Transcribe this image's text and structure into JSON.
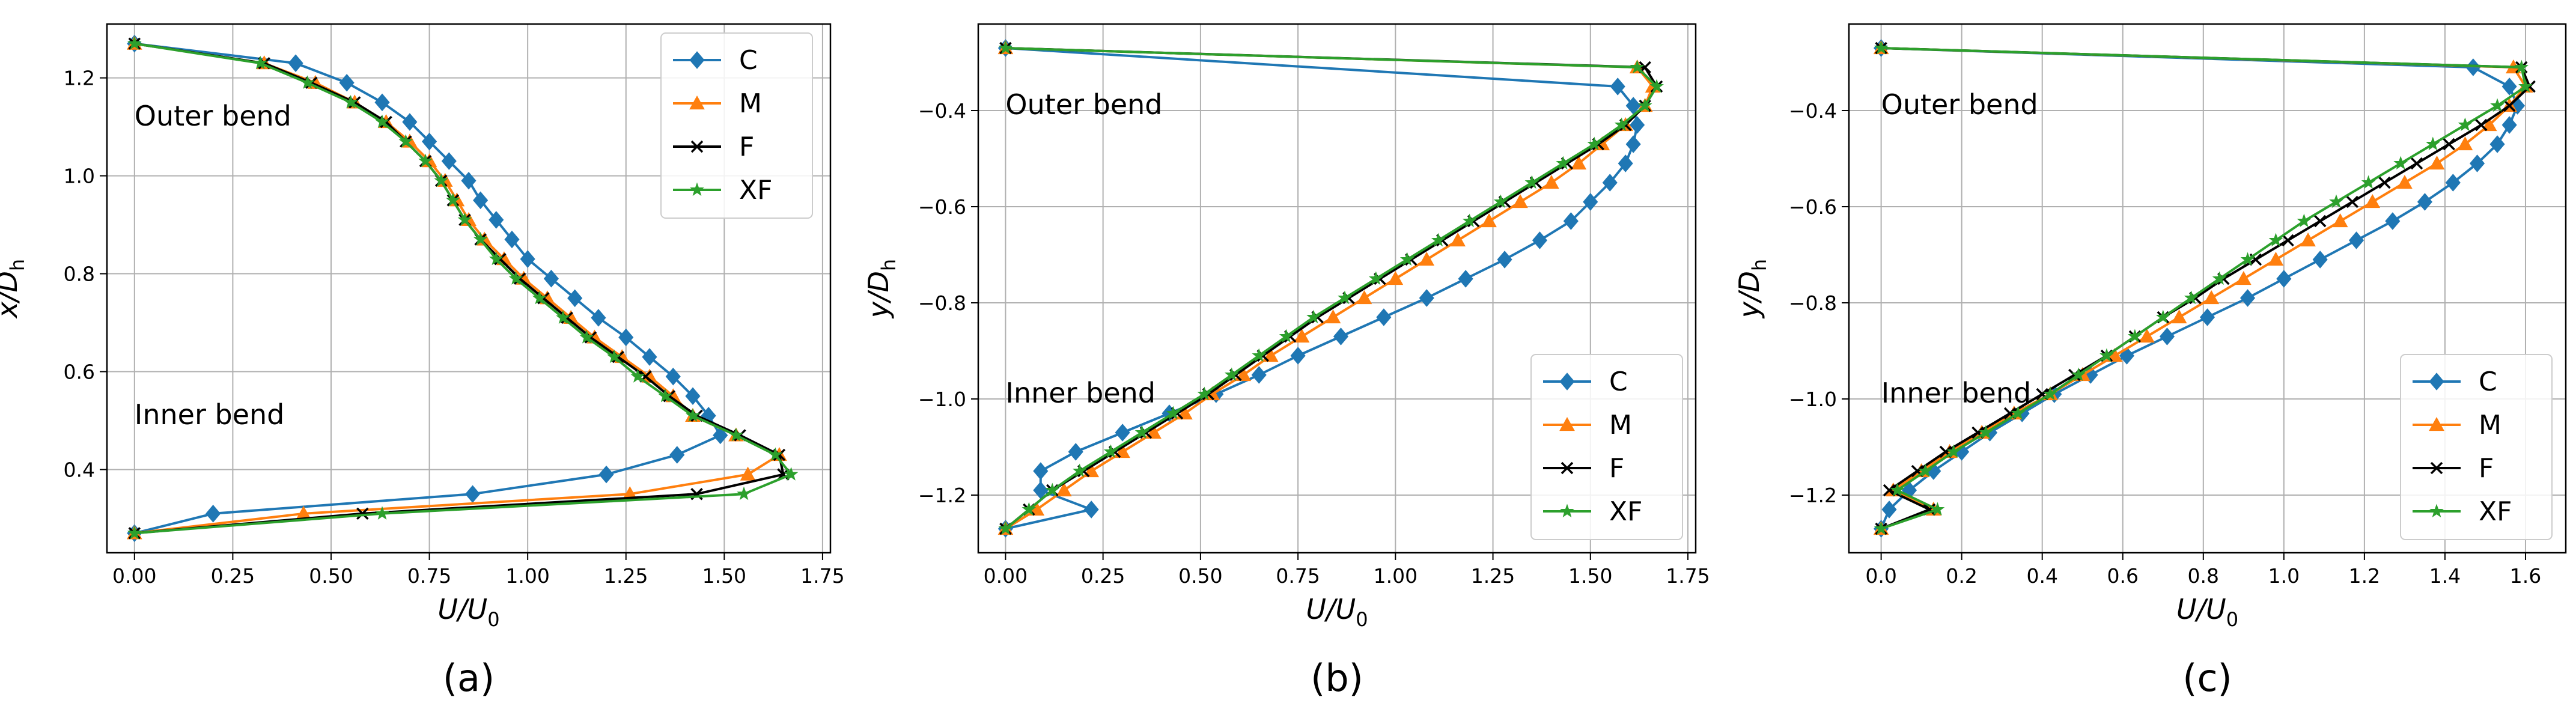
{
  "chart_data": [
    {
      "type": "line",
      "panel_label": "(a)",
      "xlabel": "U/U",
      "xlabel_sub": "0",
      "ylabel": "x/D",
      "ylabel_sub": "h",
      "xlim": [
        -0.07,
        1.77
      ],
      "ylim": [
        0.23,
        1.31
      ],
      "xticks": [
        0,
        0.25,
        0.5,
        0.75,
        1.0,
        1.25,
        1.5,
        1.75
      ],
      "xtick_labels": [
        "0.00",
        "0.25",
        "0.50",
        "0.75",
        "1.00",
        "1.25",
        "1.50",
        "1.75"
      ],
      "yticks": [
        0.4,
        0.6,
        0.8,
        1.0,
        1.2
      ],
      "ytick_labels": [
        "0.4",
        "0.6",
        "0.8",
        "1.0",
        "1.2"
      ],
      "grid": true,
      "legend_position": "top-right",
      "annotations": [
        {
          "text": "Outer bend",
          "x": 0.0,
          "y": 1.12
        },
        {
          "text": "Inner bend",
          "x": 0.0,
          "y": 0.51
        }
      ],
      "series": [
        {
          "name": "C",
          "x": [
            0.0,
            0.41,
            0.54,
            0.63,
            0.7,
            0.75,
            0.8,
            0.85,
            0.88,
            0.92,
            0.96,
            1.0,
            1.06,
            1.12,
            1.18,
            1.25,
            1.31,
            1.37,
            1.42,
            1.46,
            1.49,
            1.38,
            1.2,
            0.86,
            0.2,
            0.0
          ],
          "y": [
            1.27,
            1.23,
            1.19,
            1.15,
            1.11,
            1.07,
            1.03,
            0.99,
            0.95,
            0.91,
            0.87,
            0.83,
            0.79,
            0.75,
            0.71,
            0.67,
            0.63,
            0.59,
            0.55,
            0.51,
            0.47,
            0.43,
            0.39,
            0.35,
            0.31,
            0.27
          ]
        },
        {
          "name": "M",
          "x": [
            0.0,
            0.33,
            0.46,
            0.56,
            0.64,
            0.7,
            0.75,
            0.79,
            0.82,
            0.85,
            0.89,
            0.94,
            0.99,
            1.05,
            1.11,
            1.17,
            1.24,
            1.31,
            1.37,
            1.42,
            1.53,
            1.64,
            1.56,
            1.26,
            0.43,
            0.0
          ],
          "y": [
            1.27,
            1.23,
            1.19,
            1.15,
            1.11,
            1.07,
            1.03,
            0.99,
            0.95,
            0.91,
            0.87,
            0.83,
            0.79,
            0.75,
            0.71,
            0.67,
            0.63,
            0.59,
            0.55,
            0.51,
            0.47,
            0.43,
            0.39,
            0.35,
            0.31,
            0.27
          ]
        },
        {
          "name": "F",
          "x": [
            0.0,
            0.33,
            0.45,
            0.56,
            0.64,
            0.69,
            0.74,
            0.78,
            0.81,
            0.84,
            0.88,
            0.93,
            0.98,
            1.04,
            1.1,
            1.16,
            1.23,
            1.3,
            1.36,
            1.43,
            1.54,
            1.64,
            1.65,
            1.43,
            0.58,
            0.0
          ],
          "y": [
            1.27,
            1.23,
            1.19,
            1.15,
            1.11,
            1.07,
            1.03,
            0.99,
            0.95,
            0.91,
            0.87,
            0.83,
            0.79,
            0.75,
            0.71,
            0.67,
            0.63,
            0.59,
            0.55,
            0.51,
            0.47,
            0.43,
            0.39,
            0.35,
            0.31,
            0.27
          ]
        },
        {
          "name": "XF",
          "x": [
            0.0,
            0.32,
            0.44,
            0.55,
            0.63,
            0.69,
            0.74,
            0.78,
            0.81,
            0.84,
            0.88,
            0.92,
            0.97,
            1.03,
            1.09,
            1.15,
            1.22,
            1.28,
            1.35,
            1.42,
            1.53,
            1.63,
            1.67,
            1.55,
            0.63,
            0.0
          ],
          "y": [
            1.27,
            1.23,
            1.19,
            1.15,
            1.11,
            1.07,
            1.03,
            0.99,
            0.95,
            0.91,
            0.87,
            0.83,
            0.79,
            0.75,
            0.71,
            0.67,
            0.63,
            0.59,
            0.55,
            0.51,
            0.47,
            0.43,
            0.39,
            0.35,
            0.31,
            0.27
          ]
        }
      ]
    },
    {
      "type": "line",
      "panel_label": "(b)",
      "xlabel": "U/U",
      "xlabel_sub": "0",
      "ylabel": "y/D",
      "ylabel_sub": "h",
      "xlim": [
        -0.07,
        1.77
      ],
      "ylim": [
        -1.32,
        -0.22
      ],
      "xticks": [
        0,
        0.25,
        0.5,
        0.75,
        1.0,
        1.25,
        1.5,
        1.75
      ],
      "xtick_labels": [
        "0.00",
        "0.25",
        "0.50",
        "0.75",
        "1.00",
        "1.25",
        "1.50",
        "1.75"
      ],
      "yticks": [
        -1.2,
        -1.0,
        -0.8,
        -0.6,
        -0.4
      ],
      "ytick_labels": [
        "−1.2",
        "−1.0",
        "−0.8",
        "−0.6",
        "−0.4"
      ],
      "grid": true,
      "legend_position": "bottom-right",
      "annotations": [
        {
          "text": "Outer bend",
          "x": 0.0,
          "y": -0.39
        },
        {
          "text": "Inner bend",
          "x": 0.0,
          "y": -0.99
        }
      ],
      "series": [
        {
          "name": "C",
          "x": [
            0.0,
            0.22,
            0.09,
            0.09,
            0.18,
            0.3,
            0.42,
            0.54,
            0.65,
            0.75,
            0.86,
            0.97,
            1.08,
            1.18,
            1.28,
            1.37,
            1.45,
            1.5,
            1.55,
            1.59,
            1.61,
            1.62,
            1.61,
            1.57,
            0.0
          ],
          "y": [
            -1.27,
            -1.23,
            -1.19,
            -1.15,
            -1.11,
            -1.07,
            -1.03,
            -0.99,
            -0.95,
            -0.91,
            -0.87,
            -0.83,
            -0.79,
            -0.75,
            -0.71,
            -0.67,
            -0.63,
            -0.59,
            -0.55,
            -0.51,
            -0.47,
            -0.43,
            -0.39,
            -0.35,
            -0.27
          ]
        },
        {
          "name": "M",
          "x": [
            0.0,
            0.08,
            0.15,
            0.22,
            0.3,
            0.38,
            0.46,
            0.53,
            0.61,
            0.68,
            0.76,
            0.84,
            0.92,
            1.0,
            1.08,
            1.16,
            1.24,
            1.32,
            1.4,
            1.47,
            1.53,
            1.59,
            1.64,
            1.66,
            1.62,
            0.0
          ],
          "y": [
            -1.27,
            -1.23,
            -1.19,
            -1.15,
            -1.11,
            -1.07,
            -1.03,
            -0.99,
            -0.95,
            -0.91,
            -0.87,
            -0.83,
            -0.79,
            -0.75,
            -0.71,
            -0.67,
            -0.63,
            -0.59,
            -0.55,
            -0.51,
            -0.47,
            -0.43,
            -0.39,
            -0.35,
            -0.31,
            -0.27
          ]
        },
        {
          "name": "F",
          "x": [
            0.0,
            0.06,
            0.12,
            0.2,
            0.28,
            0.36,
            0.44,
            0.52,
            0.59,
            0.66,
            0.73,
            0.8,
            0.88,
            0.96,
            1.04,
            1.12,
            1.2,
            1.28,
            1.36,
            1.44,
            1.52,
            1.59,
            1.64,
            1.67,
            1.64,
            0.0
          ],
          "y": [
            -1.27,
            -1.23,
            -1.19,
            -1.15,
            -1.11,
            -1.07,
            -1.03,
            -0.99,
            -0.95,
            -0.91,
            -0.87,
            -0.83,
            -0.79,
            -0.75,
            -0.71,
            -0.67,
            -0.63,
            -0.59,
            -0.55,
            -0.51,
            -0.47,
            -0.43,
            -0.39,
            -0.35,
            -0.31,
            -0.27
          ]
        },
        {
          "name": "XF",
          "x": [
            0.0,
            0.06,
            0.12,
            0.19,
            0.27,
            0.35,
            0.43,
            0.51,
            0.58,
            0.65,
            0.72,
            0.79,
            0.87,
            0.95,
            1.03,
            1.11,
            1.19,
            1.27,
            1.35,
            1.43,
            1.51,
            1.58,
            1.64,
            1.67,
            1.62,
            0.0
          ],
          "y": [
            -1.27,
            -1.23,
            -1.19,
            -1.15,
            -1.11,
            -1.07,
            -1.03,
            -0.99,
            -0.95,
            -0.91,
            -0.87,
            -0.83,
            -0.79,
            -0.75,
            -0.71,
            -0.67,
            -0.63,
            -0.59,
            -0.55,
            -0.51,
            -0.47,
            -0.43,
            -0.39,
            -0.35,
            -0.31,
            -0.27
          ]
        }
      ]
    },
    {
      "type": "line",
      "panel_label": "(c)",
      "xlabel": "U/U",
      "xlabel_sub": "0",
      "ylabel": "y/D",
      "ylabel_sub": "h",
      "xlim": [
        -0.08,
        1.7
      ],
      "ylim": [
        -1.32,
        -0.22
      ],
      "xticks": [
        0,
        0.2,
        0.4,
        0.6,
        0.8,
        1.0,
        1.2,
        1.4,
        1.6
      ],
      "xtick_labels": [
        "0.0",
        "0.2",
        "0.4",
        "0.6",
        "0.8",
        "1.0",
        "1.2",
        "1.4",
        "1.6"
      ],
      "yticks": [
        -1.2,
        -1.0,
        -0.8,
        -0.6,
        -0.4
      ],
      "ytick_labels": [
        "−1.2",
        "−1.0",
        "−0.8",
        "−0.6",
        "−0.4"
      ],
      "grid": true,
      "legend_position": "bottom-right",
      "annotations": [
        {
          "text": "Outer bend",
          "x": 0.0,
          "y": -0.39
        },
        {
          "text": "Inner bend",
          "x": 0.0,
          "y": -0.99
        }
      ],
      "series": [
        {
          "name": "C",
          "x": [
            0.0,
            0.02,
            0.07,
            0.13,
            0.2,
            0.27,
            0.35,
            0.43,
            0.52,
            0.61,
            0.71,
            0.81,
            0.91,
            1.0,
            1.09,
            1.18,
            1.27,
            1.35,
            1.42,
            1.48,
            1.53,
            1.56,
            1.58,
            1.56,
            1.47,
            0.0
          ],
          "y": [
            -1.27,
            -1.23,
            -1.19,
            -1.15,
            -1.11,
            -1.07,
            -1.03,
            -0.99,
            -0.95,
            -0.91,
            -0.87,
            -0.83,
            -0.79,
            -0.75,
            -0.71,
            -0.67,
            -0.63,
            -0.59,
            -0.55,
            -0.51,
            -0.47,
            -0.43,
            -0.39,
            -0.35,
            -0.31,
            -0.27
          ]
        },
        {
          "name": "M",
          "x": [
            0.0,
            0.13,
            0.03,
            0.1,
            0.17,
            0.25,
            0.33,
            0.42,
            0.5,
            0.58,
            0.66,
            0.74,
            0.82,
            0.9,
            0.98,
            1.06,
            1.14,
            1.22,
            1.3,
            1.38,
            1.45,
            1.51,
            1.56,
            1.6,
            1.57,
            0.0
          ],
          "y": [
            -1.27,
            -1.23,
            -1.19,
            -1.15,
            -1.11,
            -1.07,
            -1.03,
            -0.99,
            -0.95,
            -0.91,
            -0.87,
            -0.83,
            -0.79,
            -0.75,
            -0.71,
            -0.67,
            -0.63,
            -0.59,
            -0.55,
            -0.51,
            -0.47,
            -0.43,
            -0.39,
            -0.35,
            -0.31,
            -0.27
          ]
        },
        {
          "name": "F",
          "x": [
            0.0,
            0.12,
            0.02,
            0.09,
            0.16,
            0.24,
            0.32,
            0.4,
            0.48,
            0.56,
            0.63,
            0.7,
            0.78,
            0.85,
            0.93,
            1.01,
            1.09,
            1.17,
            1.25,
            1.33,
            1.41,
            1.49,
            1.56,
            1.61,
            1.59,
            0.0
          ],
          "y": [
            -1.27,
            -1.23,
            -1.19,
            -1.15,
            -1.11,
            -1.07,
            -1.03,
            -0.99,
            -0.95,
            -0.91,
            -0.87,
            -0.83,
            -0.79,
            -0.75,
            -0.71,
            -0.67,
            -0.63,
            -0.59,
            -0.55,
            -0.51,
            -0.47,
            -0.43,
            -0.39,
            -0.35,
            -0.31,
            -0.27
          ]
        },
        {
          "name": "XF",
          "x": [
            0.0,
            0.14,
            0.04,
            0.11,
            0.18,
            0.26,
            0.34,
            0.42,
            0.49,
            0.56,
            0.63,
            0.7,
            0.77,
            0.84,
            0.91,
            0.98,
            1.05,
            1.13,
            1.21,
            1.29,
            1.37,
            1.45,
            1.53,
            1.6,
            1.59,
            0.0
          ],
          "y": [
            -1.27,
            -1.23,
            -1.19,
            -1.15,
            -1.11,
            -1.07,
            -1.03,
            -0.99,
            -0.95,
            -0.91,
            -0.87,
            -0.83,
            -0.79,
            -0.75,
            -0.71,
            -0.67,
            -0.63,
            -0.59,
            -0.55,
            -0.51,
            -0.47,
            -0.43,
            -0.39,
            -0.35,
            -0.31,
            -0.27
          ]
        }
      ]
    }
  ],
  "series_style": {
    "C": {
      "color": "#1f77b4",
      "marker": "diamond"
    },
    "M": {
      "color": "#ff7f0e",
      "marker": "triangle-up"
    },
    "F": {
      "color": "#000000",
      "marker": "x"
    },
    "XF": {
      "color": "#2ca02c",
      "marker": "star"
    }
  },
  "grid_color": "#b0b0b0"
}
